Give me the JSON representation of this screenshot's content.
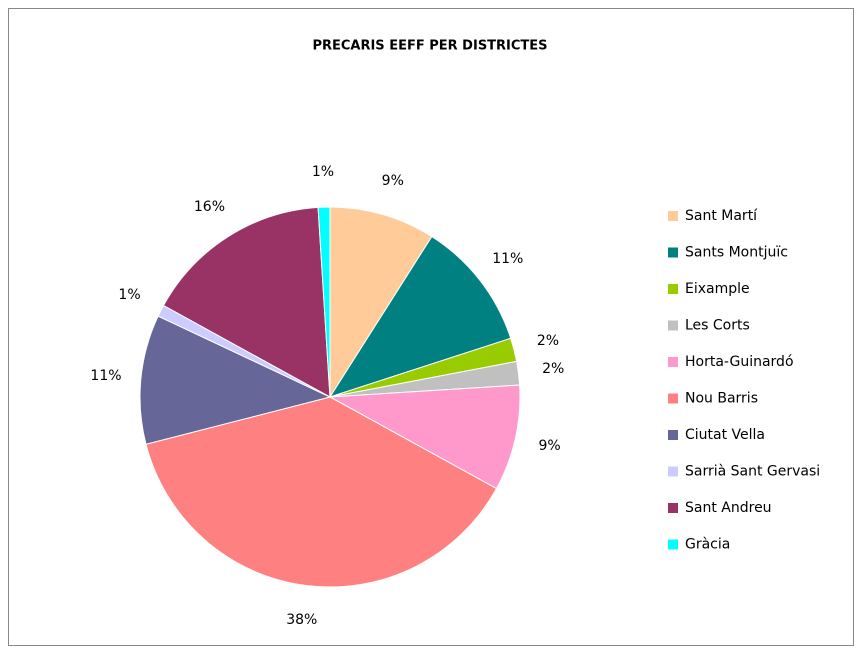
{
  "chart_data": {
    "type": "pie",
    "title": "PRECARIS EEFF PER DISTRICTES",
    "categories": [
      "Sant Martí",
      "Sants Montjuïc",
      "Eixample",
      "Les Corts",
      "Horta-Guinardó",
      "Nou Barris",
      "Ciutat Vella",
      "Sarrià Sant Gervasi",
      "Sant Andreu",
      "Gràcia"
    ],
    "values": [
      9,
      11,
      2,
      2,
      9,
      38,
      11,
      1,
      16,
      1
    ],
    "value_labels": [
      "9%",
      "11%",
      "2%",
      "2%",
      "9%",
      "38%",
      "11%",
      "1%",
      "16%",
      "1%"
    ],
    "colors": [
      "#FFCC99",
      "#008080",
      "#99CC00",
      "#C0C0C0",
      "#FF99CC",
      "#FF8080",
      "#666699",
      "#CCCCFF",
      "#993366",
      "#00FFFF"
    ],
    "legend": "right"
  }
}
